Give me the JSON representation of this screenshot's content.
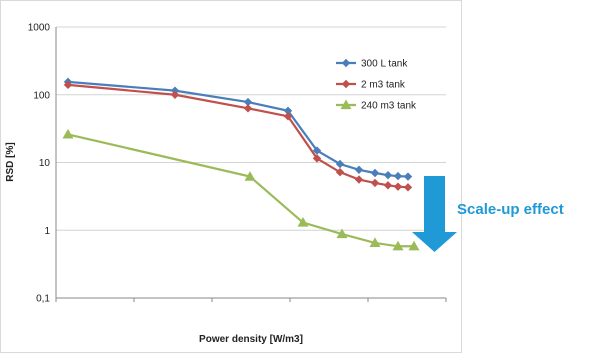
{
  "chart_data": {
    "type": "line",
    "y_scale": "log",
    "ylim": [
      0.1,
      1000
    ],
    "y_ticks": [
      "1000",
      "100",
      "10",
      "1",
      "0,1"
    ],
    "xlabel": "Power density [W/m3]",
    "ylabel": "RSD [%]",
    "x_ticks_labeled": false,
    "grid": "horizontal",
    "legend_position": "top-right",
    "annotation": "Scale-up effect",
    "series": [
      {
        "name": "300 L tank",
        "color": "#4a7ebb",
        "marker": "diamond",
        "x": [
          1,
          2,
          3,
          4,
          5,
          6,
          7,
          8,
          9,
          10,
          11
        ],
        "y": [
          155,
          115,
          78,
          58,
          15,
          9.5,
          7.8,
          7.0,
          6.5,
          6.3,
          6.2
        ]
      },
      {
        "name": "2 m3 tank",
        "color": "#c0504d",
        "marker": "diamond",
        "x": [
          1,
          2,
          3,
          4,
          5,
          6,
          7,
          8,
          9,
          10,
          11
        ],
        "y": [
          140,
          100,
          63,
          48,
          11.5,
          7.2,
          5.6,
          5.0,
          4.6,
          4.4,
          4.3
        ]
      },
      {
        "name": "240 m3 tank",
        "color": "#9bbb59",
        "marker": "triangle",
        "x": [
          1,
          2,
          3,
          4,
          5,
          6,
          7
        ],
        "y": [
          26,
          6.2,
          1.3,
          0.88,
          0.65,
          0.58,
          0.58
        ]
      }
    ]
  }
}
